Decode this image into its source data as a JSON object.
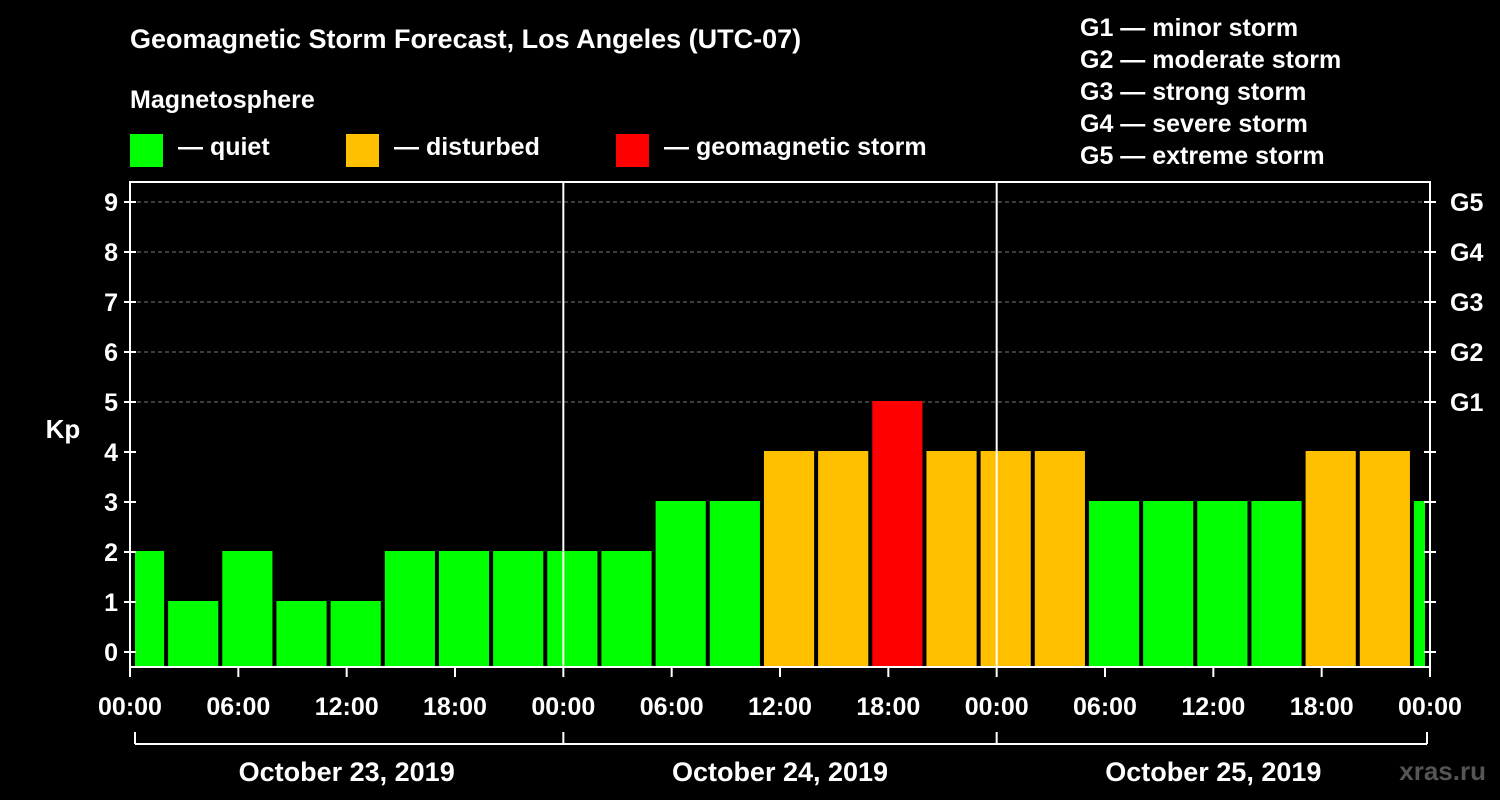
{
  "title": "Geomagnetic Storm Forecast, Los Angeles (UTC-07)",
  "legend": {
    "heading": "Magnetosphere",
    "items": [
      {
        "label": "— quiet",
        "color": "#00ff00"
      },
      {
        "label": "— disturbed",
        "color": "#ffc000"
      },
      {
        "label": "— geomagnetic storm",
        "color": "#ff0000"
      }
    ]
  },
  "g_scale": [
    "G1 — minor storm",
    "G2 — moderate storm",
    "G3 — strong storm",
    "G4 — severe storm",
    "G5 — extreme storm"
  ],
  "watermark": "xras.ru",
  "chart_data": {
    "type": "bar",
    "title": "Geomagnetic Storm Forecast, Los Angeles (UTC-07)",
    "ylabel": "Kp",
    "ylim": [
      0,
      9
    ],
    "yticks": [
      "0",
      "1",
      "2",
      "3",
      "4",
      "5",
      "6",
      "7",
      "8",
      "9"
    ],
    "right_ticks": [
      {
        "kp": 5,
        "label": "G1"
      },
      {
        "kp": 6,
        "label": "G2"
      },
      {
        "kp": 7,
        "label": "G3"
      },
      {
        "kp": 8,
        "label": "G4"
      },
      {
        "kp": 9,
        "label": "G5"
      }
    ],
    "x_unit_hours": 3,
    "x_start_hour": -1,
    "x_range_hours": [
      0,
      72
    ],
    "xtick_labels": [
      "00:00",
      "06:00",
      "12:00",
      "18:00",
      "00:00",
      "06:00",
      "12:00",
      "18:00",
      "00:00",
      "06:00",
      "12:00",
      "18:00",
      "00:00"
    ],
    "days": [
      "October 23, 2019",
      "October 24, 2019",
      "October 25, 2019"
    ],
    "status_thresholds": {
      "disturbed": 4,
      "storm": 5
    },
    "colors": {
      "quiet": "#00ff00",
      "disturbed": "#ffc000",
      "storm": "#ff0000"
    },
    "values": [
      2,
      1,
      2,
      1,
      1,
      2,
      2,
      2,
      2,
      2,
      3,
      3,
      4,
      4,
      5,
      4,
      4,
      4,
      3,
      3,
      3,
      3,
      4,
      4,
      3
    ]
  }
}
